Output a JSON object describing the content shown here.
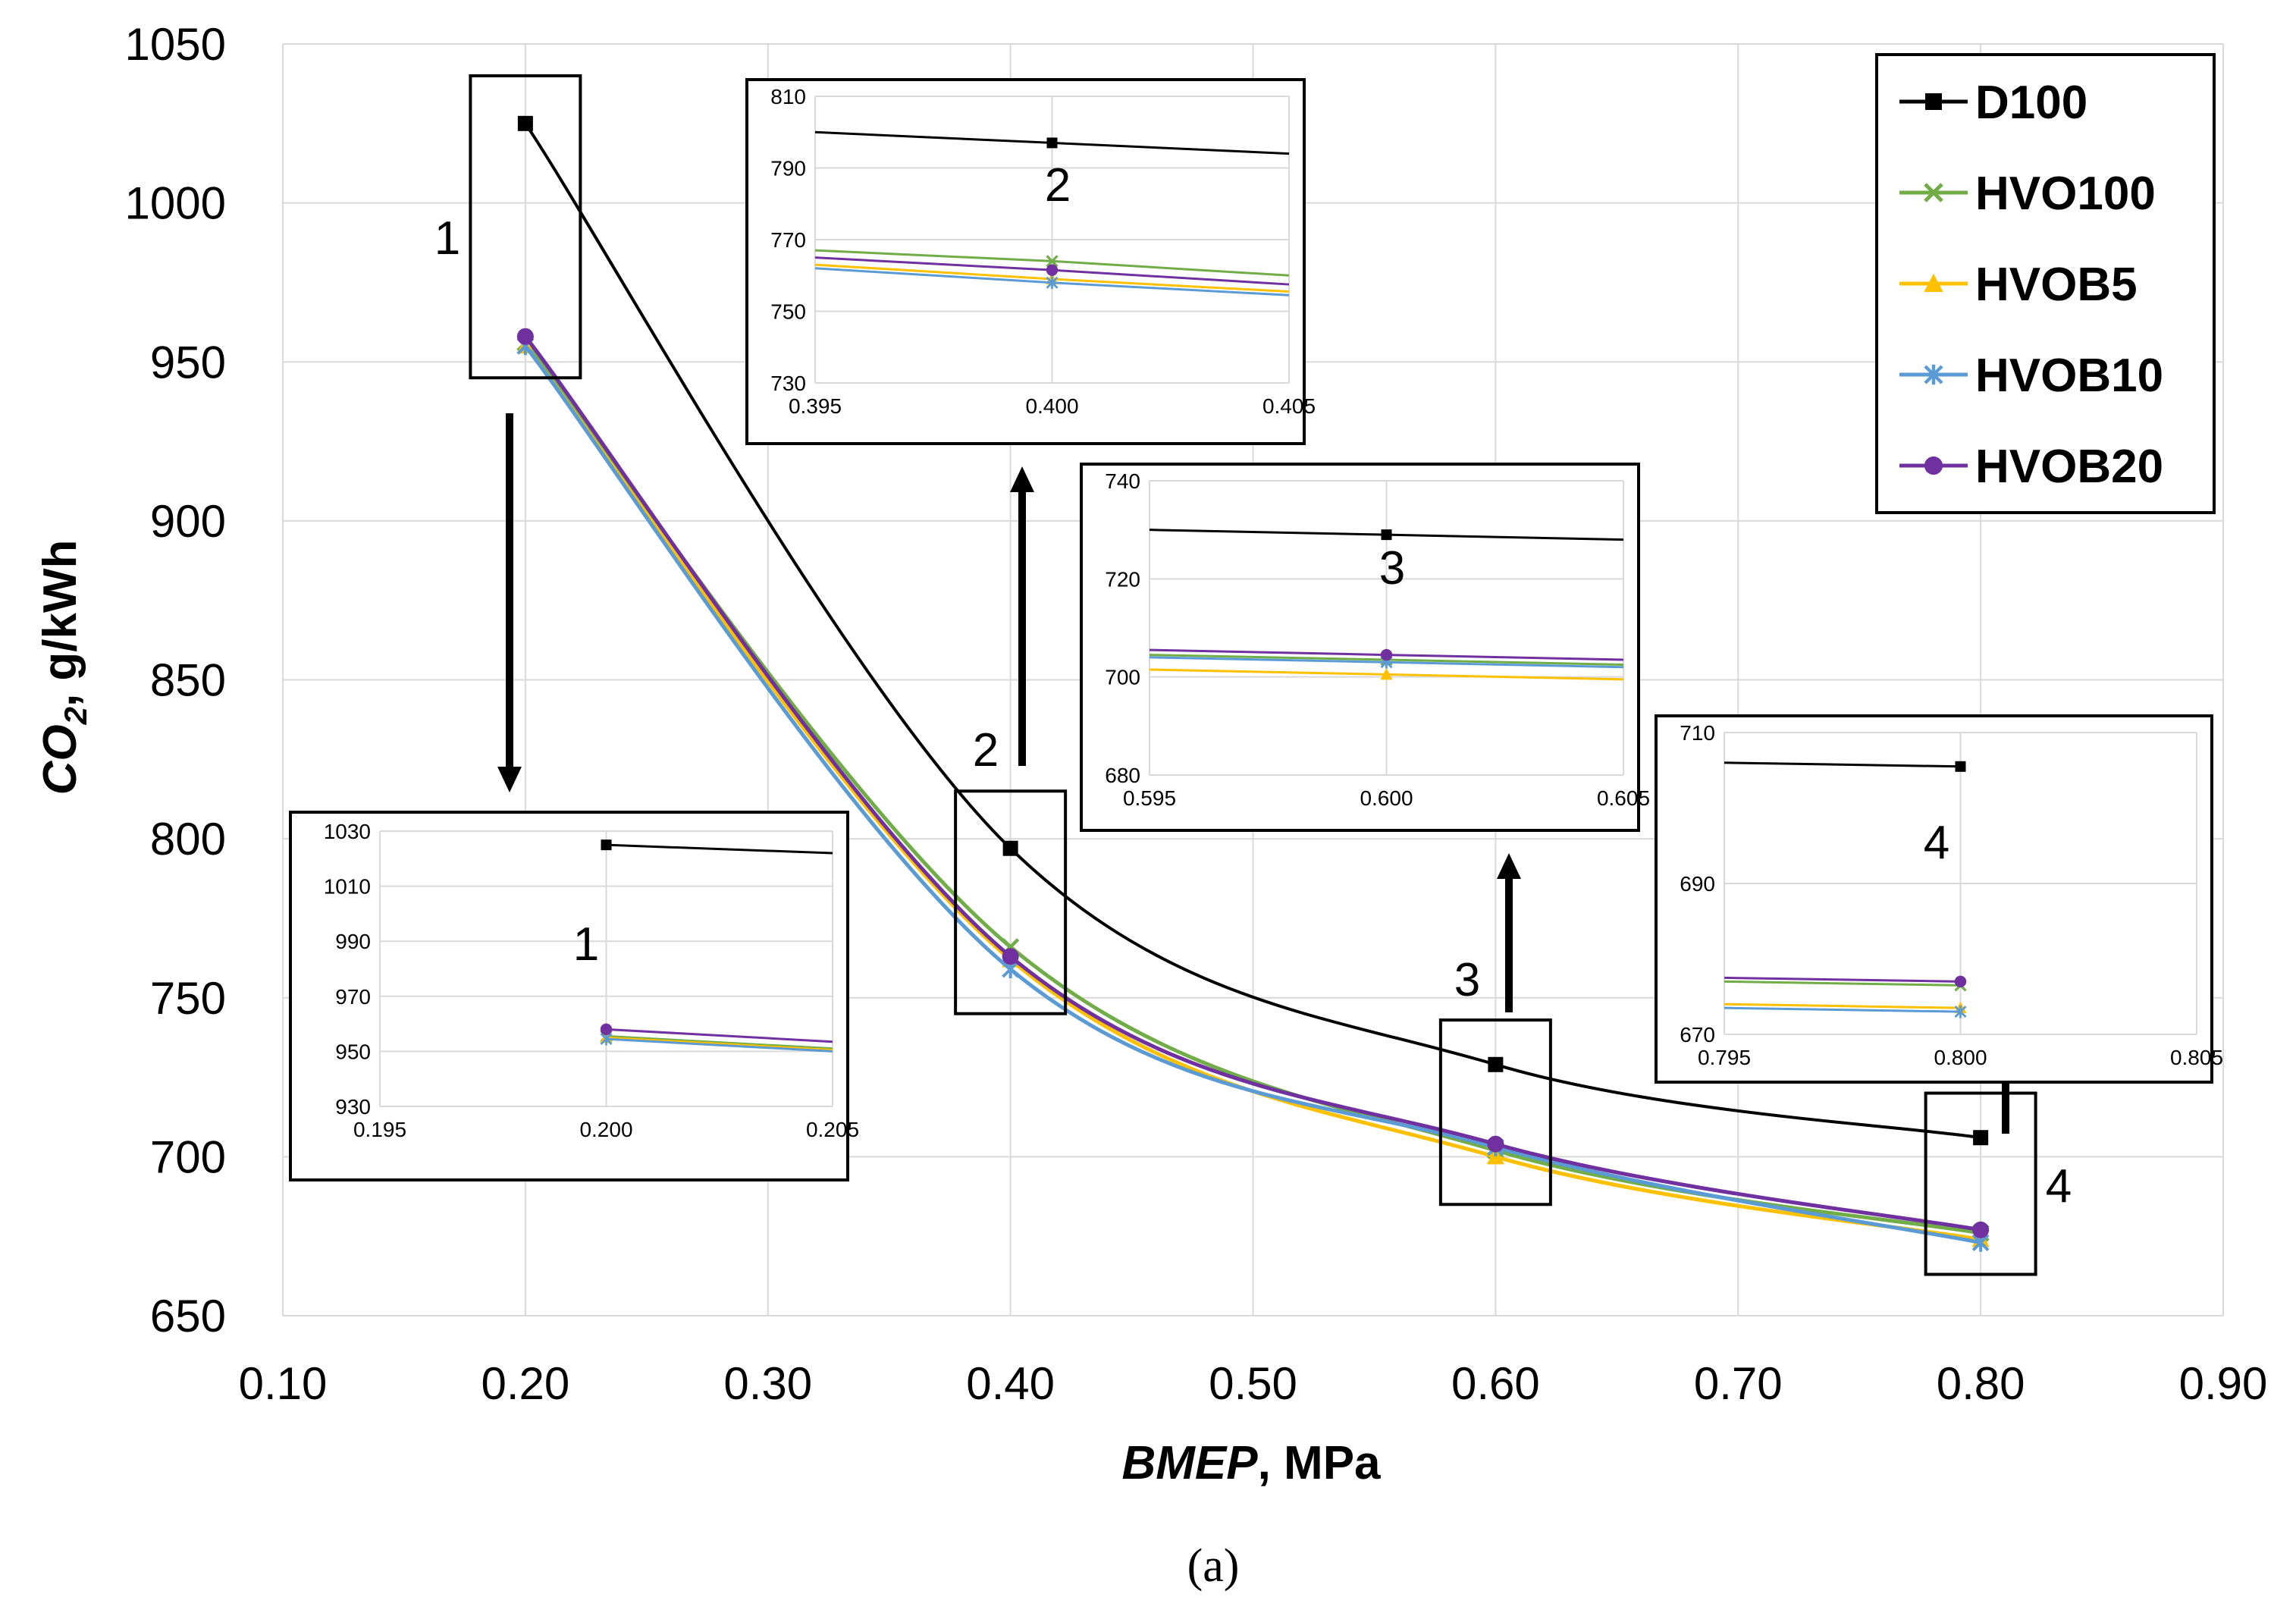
{
  "chart_data": {
    "type": "line",
    "x": [
      0.2,
      0.4,
      0.6,
      0.8
    ],
    "series": [
      {
        "name": "D100",
        "color": "#000000",
        "marker": "square",
        "values": [
          1025,
          797,
          729,
          706
        ]
      },
      {
        "name": "HVO100",
        "color": "#70ad47",
        "marker": "x",
        "values": [
          956,
          766,
          702,
          676
        ]
      },
      {
        "name": "HVOB5",
        "color": "#ffc000",
        "marker": "triangle",
        "values": [
          955,
          762,
          700,
          674
        ]
      },
      {
        "name": "HVOB10",
        "color": "#5b9bd5",
        "marker": "asterisk",
        "values": [
          955,
          759,
          703,
          673
        ]
      },
      {
        "name": "HVOB20",
        "color": "#7030a0",
        "marker": "circle",
        "values": [
          958,
          763,
          704,
          677
        ]
      }
    ],
    "xlim": [
      0.1,
      0.9
    ],
    "ylim": [
      650,
      1050
    ],
    "xticks": [
      "0.10",
      "0.20",
      "0.30",
      "0.40",
      "0.50",
      "0.60",
      "0.70",
      "0.80",
      "0.90"
    ],
    "yticks": [
      "650",
      "700",
      "750",
      "800",
      "850",
      "900",
      "950",
      "1000",
      "1050"
    ],
    "xlabel_italic": "BMEP",
    "xlabel_rest": ", MPa",
    "ylabel_main": "CO",
    "ylabel_sub": "2",
    "ylabel_rest": ", g/kWh",
    "caption": "(a)",
    "legend_position": "top-right",
    "zones": [
      {
        "label": "1",
        "x": 0.2,
        "range": [
          945,
          1040
        ]
      },
      {
        "label": "2",
        "x": 0.4,
        "range": [
          745,
          815
        ]
      },
      {
        "label": "3",
        "x": 0.6,
        "range": [
          685,
          743
        ]
      },
      {
        "label": "4",
        "x": 0.8,
        "range": [
          663,
          720
        ]
      }
    ],
    "insets": [
      {
        "label": "1",
        "xticks": [
          "0.195",
          "0.200",
          "0.205"
        ],
        "yticks": [
          "930",
          "950",
          "970",
          "990",
          "1010",
          "1030"
        ],
        "xlim": [
          0.195,
          0.205
        ],
        "ylim": [
          930,
          1030
        ],
        "series": [
          {
            "name": "D100",
            "values": [
              1025,
              1022
            ]
          },
          {
            "name": "HVO100",
            "values": [
              955.5,
              951
            ]
          },
          {
            "name": "HVOB5",
            "values": [
              955,
              950.5
            ]
          },
          {
            "name": "HVOB10",
            "values": [
              954.5,
              950
            ]
          },
          {
            "name": "HVOB20",
            "values": [
              958,
              953.5
            ]
          }
        ]
      },
      {
        "label": "2",
        "xticks": [
          "0.395",
          "0.400",
          "0.405"
        ],
        "yticks": [
          "730",
          "750",
          "770",
          "790",
          "810"
        ],
        "xlim": [
          0.395,
          0.405
        ],
        "ylim": [
          730,
          810
        ],
        "series": [
          {
            "name": "D100",
            "values": [
              800,
              797,
              794
            ]
          },
          {
            "name": "HVO100",
            "values": [
              767,
              764,
              760
            ]
          },
          {
            "name": "HVOB5",
            "values": [
              763,
              759,
              755.5
            ]
          },
          {
            "name": "HVOB10",
            "values": [
              762,
              758,
              754.5
            ]
          },
          {
            "name": "HVOB20",
            "values": [
              765,
              761.5,
              757.5
            ]
          }
        ]
      },
      {
        "label": "3",
        "xticks": [
          "0.595",
          "0.600",
          "0.605"
        ],
        "yticks": [
          "680",
          "700",
          "720",
          "740"
        ],
        "xlim": [
          0.595,
          0.605
        ],
        "ylim": [
          680,
          740
        ],
        "series": [
          {
            "name": "D100",
            "values": [
              730,
              729,
              728
            ]
          },
          {
            "name": "HVO100",
            "values": [
              704.5,
              703.5,
              702.5
            ]
          },
          {
            "name": "HVOB5",
            "values": [
              701.5,
              700.5,
              699.5
            ]
          },
          {
            "name": "HVOB10",
            "values": [
              704,
              703,
              702
            ]
          },
          {
            "name": "HVOB20",
            "values": [
              705.5,
              704.5,
              703.5
            ]
          }
        ]
      },
      {
        "label": "4",
        "xticks": [
          "0.795",
          "0.800",
          "0.805"
        ],
        "yticks": [
          "670",
          "690",
          "710"
        ],
        "xlim": [
          0.795,
          0.805
        ],
        "ylim": [
          670,
          710
        ],
        "series": [
          {
            "name": "D100",
            "values": [
              706,
              705.5
            ]
          },
          {
            "name": "HVO100",
            "values": [
              677,
              676.5
            ]
          },
          {
            "name": "HVOB5",
            "values": [
              674,
              673.5
            ]
          },
          {
            "name": "HVOB10",
            "values": [
              673.5,
              673
            ]
          },
          {
            "name": "HVOB20",
            "values": [
              677.5,
              677
            ]
          }
        ]
      }
    ]
  }
}
